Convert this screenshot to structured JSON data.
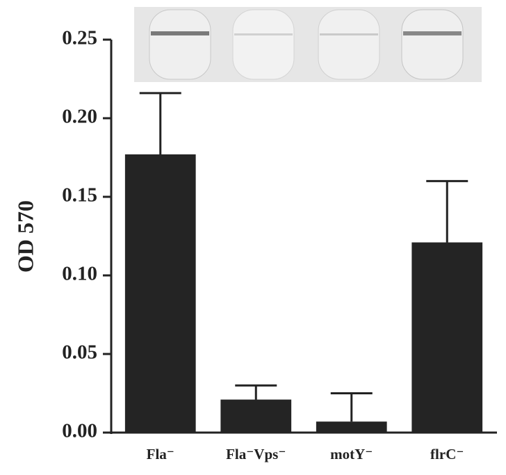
{
  "chart_data": {
    "type": "bar",
    "y_label": "OD 570",
    "categories": [
      "Fla⁻",
      "Fla⁻Vps⁻",
      "motY⁻",
      "flrC⁻"
    ],
    "values": [
      0.177,
      0.021,
      0.007,
      0.121
    ],
    "errors": [
      0.039,
      0.009,
      0.018,
      0.039
    ],
    "color": "#242424",
    "ylim": [
      0,
      0.25
    ],
    "yticks": [
      {
        "value": 0,
        "label": "0.00"
      },
      {
        "value": 0.05,
        "label": "0.05"
      },
      {
        "value": 0.1,
        "label": "0.10"
      },
      {
        "value": 0.15,
        "label": "0.15"
      },
      {
        "value": 0.2,
        "label": "0.20"
      },
      {
        "value": 0.25,
        "label": "0.25"
      }
    ],
    "grid": false
  }
}
